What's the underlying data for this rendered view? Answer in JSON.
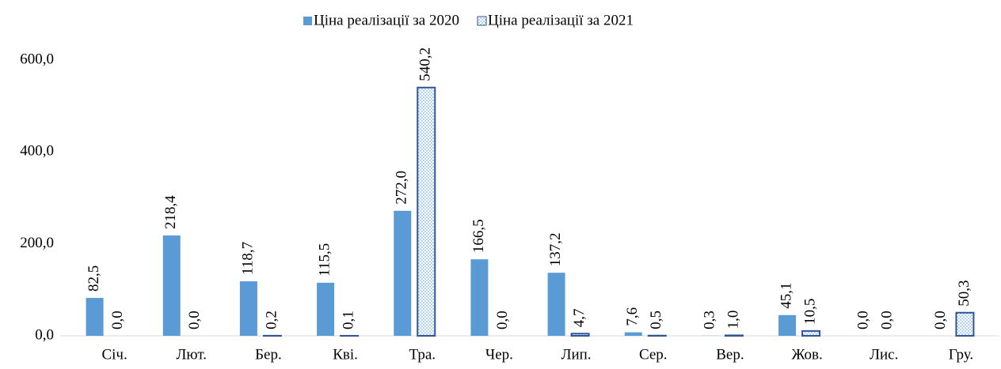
{
  "chart_data": {
    "type": "bar",
    "categories": [
      "Січ.",
      "Лют.",
      "Бер.",
      "Кві.",
      "Тра.",
      "Чер.",
      "Лип.",
      "Сер.",
      "Вер.",
      "Жов.",
      "Лис.",
      "Гру."
    ],
    "series": [
      {
        "name": "Ціна реалізації за 2020",
        "color": "#5b9bd5",
        "values": [
          82.5,
          218.4,
          118.7,
          115.5,
          272.0,
          166.5,
          137.2,
          7.6,
          0.3,
          45.1,
          0.0,
          0.0
        ],
        "value_labels": [
          "82,5",
          "218,4",
          "118,7",
          "115,5",
          "272,0",
          "166,5",
          "137,2",
          "7,6",
          "0,3",
          "45,1",
          "0,0",
          "0,0"
        ]
      },
      {
        "name": "Ціна реалізації за 2021",
        "color": "#2f5597",
        "pattern": "dots",
        "values": [
          0.0,
          0.0,
          0.2,
          0.1,
          540.2,
          0.0,
          4.7,
          0.5,
          1.0,
          10.5,
          0.0,
          50.3
        ],
        "value_labels": [
          "0,0",
          "0,0",
          "0,2",
          "0,1",
          "540,2",
          "0,0",
          "4,7",
          "0,5",
          "1,0",
          "10,5",
          "0,0",
          "50,3"
        ]
      }
    ],
    "ylim": [
      0,
      600
    ],
    "yticks": [
      {
        "value": 0,
        "label": "0,0"
      },
      {
        "value": 200,
        "label": "200,0"
      },
      {
        "value": 400,
        "label": "400,0"
      },
      {
        "value": 600,
        "label": "600,0"
      }
    ],
    "grid": false,
    "legend": "top"
  }
}
